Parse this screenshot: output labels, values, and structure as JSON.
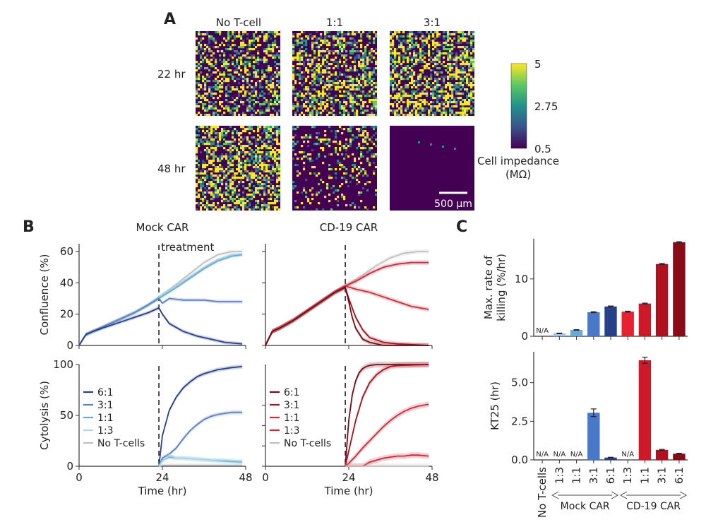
{
  "panels": {
    "a": "A",
    "b": "B",
    "c": "C"
  },
  "panel_a": {
    "col_labels": [
      "No T-cell",
      "1:1",
      "3:1"
    ],
    "row_labels": [
      "22 hr",
      "48 hr"
    ],
    "colorbar": {
      "ticks": [
        "5",
        "2.75",
        "0.5"
      ],
      "label_line1": "Cell impedance",
      "label_line2": "(MΩ)",
      "colors": [
        "#440154",
        "#3b528b",
        "#21918c",
        "#5ec962",
        "#fde725"
      ]
    },
    "scalebar": "500 µm"
  },
  "chart_data": [
    {
      "type": "line",
      "title": "Mock CAR",
      "ylabel": "Confluence (%)",
      "xlim": [
        0,
        48
      ],
      "ylim": [
        0,
        65
      ],
      "yticks": [
        0,
        20,
        40,
        60
      ],
      "treatment_time": 23,
      "annotation": "treatment",
      "series": [
        {
          "color": "#c0c0c0",
          "x": [
            0,
            2,
            4,
            8,
            12,
            16,
            20,
            23,
            28,
            32,
            36,
            40,
            44,
            47
          ],
          "y": [
            0,
            7,
            9,
            13,
            17,
            21,
            26,
            31,
            39,
            46,
            53,
            58,
            60,
            60
          ]
        },
        {
          "color": "#a8d8ea",
          "x": [
            0,
            2,
            4,
            8,
            12,
            16,
            20,
            23,
            28,
            32,
            36,
            40,
            44,
            47
          ],
          "y": [
            0,
            7,
            9,
            13,
            17,
            21,
            26,
            31,
            38,
            44,
            50,
            55,
            58,
            58
          ]
        },
        {
          "color": "#6aa8d8",
          "x": [
            0,
            2,
            4,
            8,
            12,
            16,
            20,
            23,
            28,
            32,
            36,
            40,
            44,
            47
          ],
          "y": [
            0,
            7,
            9,
            13,
            17,
            21,
            26,
            30,
            37,
            43,
            49,
            54,
            57,
            58
          ]
        },
        {
          "color": "#5a80c8",
          "x": [
            0,
            2,
            4,
            8,
            12,
            16,
            20,
            23,
            24,
            26,
            30,
            36,
            40,
            44,
            47
          ],
          "y": [
            0,
            7,
            9,
            13,
            17,
            21,
            26,
            30,
            27,
            30,
            29,
            29,
            28,
            28,
            28
          ]
        },
        {
          "color": "#27408b",
          "x": [
            0,
            2,
            4,
            8,
            12,
            16,
            20,
            23,
            24,
            26,
            30,
            34,
            38,
            42,
            47
          ],
          "y": [
            0,
            7,
            9,
            12,
            15,
            18,
            21,
            24,
            20,
            14,
            9,
            6,
            4,
            2,
            1
          ]
        }
      ]
    },
    {
      "type": "line",
      "title": "CD-19 CAR",
      "xlim": [
        0,
        48
      ],
      "ylim": [
        0,
        65
      ],
      "treatment_time": 23,
      "series": [
        {
          "color": "#c0c0c0",
          "x": [
            0,
            2,
            4,
            8,
            12,
            16,
            20,
            23,
            28,
            32,
            36,
            40,
            44,
            47
          ],
          "y": [
            0,
            9,
            11,
            16,
            22,
            28,
            34,
            38,
            45,
            51,
            56,
            59,
            60,
            60
          ]
        },
        {
          "color": "#e02030",
          "x": [
            0,
            2,
            4,
            8,
            12,
            16,
            20,
            23,
            26,
            30,
            34,
            38,
            42,
            47
          ],
          "y": [
            0,
            9,
            11,
            16,
            22,
            28,
            34,
            38,
            41,
            46,
            50,
            52,
            53,
            53
          ]
        },
        {
          "color": "#d42a35",
          "x": [
            0,
            2,
            4,
            8,
            12,
            16,
            20,
            23,
            26,
            30,
            34,
            38,
            42,
            47
          ],
          "y": [
            0,
            9,
            11,
            16,
            22,
            28,
            34,
            38,
            36,
            34,
            31,
            28,
            25,
            23
          ]
        },
        {
          "color": "#b01020",
          "x": [
            0,
            2,
            4,
            8,
            12,
            16,
            20,
            23,
            24,
            26,
            28,
            30,
            34,
            38,
            47
          ],
          "y": [
            0,
            9,
            11,
            16,
            22,
            28,
            34,
            37,
            30,
            18,
            10,
            5,
            2,
            1,
            0
          ]
        },
        {
          "color": "#7a0a12",
          "x": [
            0,
            2,
            4,
            8,
            12,
            16,
            20,
            23,
            24,
            25,
            26,
            28,
            30,
            34,
            47
          ],
          "y": [
            0,
            9,
            11,
            16,
            22,
            28,
            34,
            37,
            28,
            18,
            11,
            4,
            2,
            0,
            0
          ]
        }
      ]
    },
    {
      "type": "line",
      "xlabel": "Time (hr)",
      "ylabel": "Cytolysis (%)",
      "xlim": [
        0,
        48
      ],
      "ylim": [
        0,
        100
      ],
      "xticks": [
        0,
        24,
        48
      ],
      "yticks": [
        0,
        50,
        100
      ],
      "treatment_time": 23,
      "legend_position": "left",
      "series": [
        {
          "name": "6:1",
          "color": "#27408b",
          "x": [
            23,
            24,
            26,
            28,
            30,
            32,
            34,
            36,
            38,
            40,
            42,
            44,
            47
          ],
          "y": [
            0,
            30,
            55,
            68,
            77,
            83,
            88,
            91,
            93,
            95,
            96,
            97,
            98
          ]
        },
        {
          "name": "3:1",
          "color": "#5a80c8",
          "x": [
            23,
            24,
            26,
            28,
            30,
            32,
            34,
            36,
            38,
            40,
            42,
            44,
            47
          ],
          "y": [
            0,
            8,
            12,
            18,
            27,
            35,
            41,
            46,
            49,
            51,
            52,
            53,
            53
          ]
        },
        {
          "name": "1:1",
          "color": "#6aa8d8",
          "x": [
            23,
            24,
            26,
            28,
            30,
            34,
            38,
            42,
            47
          ],
          "y": [
            0,
            6,
            9,
            8,
            8,
            7,
            6,
            5,
            4
          ]
        },
        {
          "name": "1:3",
          "color": "#a8d8ea",
          "x": [
            23,
            24,
            26,
            28,
            30,
            34,
            38,
            42,
            47
          ],
          "y": [
            0,
            5,
            11,
            8,
            8,
            7,
            6,
            6,
            5
          ]
        },
        {
          "name": "No T-cells",
          "color": "#c0c0c0",
          "x": [
            23,
            24,
            28,
            32,
            36,
            40,
            44,
            47
          ],
          "y": [
            0,
            1,
            1,
            1,
            1,
            1,
            1,
            1
          ]
        }
      ]
    },
    {
      "type": "line",
      "xlabel": "Time (hr)",
      "xlim": [
        0,
        48
      ],
      "ylim": [
        0,
        100
      ],
      "xticks": [
        0,
        24,
        48
      ],
      "treatment_time": 23,
      "legend_position": "left",
      "series": [
        {
          "name": "6:1",
          "color": "#7a0a12",
          "x": [
            23,
            24,
            25,
            26,
            27,
            28,
            29,
            30,
            32,
            34,
            47
          ],
          "y": [
            0,
            45,
            70,
            84,
            92,
            96,
            98,
            99,
            100,
            100,
            100
          ]
        },
        {
          "name": "3:1",
          "color": "#b01020",
          "x": [
            23,
            24,
            26,
            28,
            30,
            32,
            34,
            36,
            38,
            47
          ],
          "y": [
            0,
            15,
            45,
            68,
            82,
            90,
            95,
            98,
            99,
            100
          ]
        },
        {
          "name": "1:1",
          "color": "#d42a35",
          "x": [
            23,
            24,
            26,
            28,
            30,
            32,
            34,
            36,
            38,
            40,
            42,
            44,
            47
          ],
          "y": [
            0,
            3,
            10,
            18,
            25,
            32,
            39,
            45,
            50,
            54,
            57,
            59,
            61
          ]
        },
        {
          "name": "1:3",
          "color": "#e02030",
          "x": [
            23,
            28,
            29,
            30,
            32,
            34,
            36,
            38,
            40,
            42,
            44,
            47
          ],
          "y": [
            0,
            0,
            2,
            4,
            6,
            8,
            9,
            10,
            10,
            11,
            11,
            10
          ]
        },
        {
          "name": "No T-cells",
          "color": "#c0c0c0",
          "x": [
            23,
            24,
            28,
            32,
            36,
            40,
            44,
            47
          ],
          "y": [
            0,
            0,
            0,
            0,
            0,
            0,
            0,
            0
          ]
        }
      ]
    },
    {
      "type": "bar",
      "ylabel": "Max. rate of killing (%/hr)",
      "ylim": [
        0,
        17
      ],
      "yticks": [
        0,
        10
      ],
      "categories": [
        "No T-cells",
        "1:3",
        "1:1",
        "3:1",
        "6:1",
        "1:3",
        "1:1",
        "3:1",
        "6:1"
      ],
      "values": [
        null,
        0.5,
        1.1,
        4.2,
        5.2,
        4.3,
        5.7,
        12.6,
        16.4
      ],
      "errors": [
        0,
        0.05,
        0.05,
        0.08,
        0.08,
        0.08,
        0.08,
        0.1,
        0.1
      ],
      "colors": [
        "#ffffff",
        "#9cc4e8",
        "#6aa8d8",
        "#4a78c8",
        "#27408b",
        "#e82030",
        "#d01828",
        "#b01020",
        "#8a0a18"
      ],
      "na_label": "N/A"
    },
    {
      "type": "bar",
      "ylabel": "KT25 (hr)",
      "ylim": [
        0,
        7
      ],
      "yticks": [
        0.0,
        2.5,
        5.0
      ],
      "categories": [
        "No T-cells",
        "1:3",
        "1:1",
        "3:1",
        "6:1",
        "1:3",
        "1:1",
        "3:1",
        "6:1"
      ],
      "values": [
        null,
        null,
        null,
        3.05,
        0.15,
        null,
        6.45,
        0.65,
        0.4
      ],
      "errors": [
        0,
        0,
        0,
        0.25,
        0.02,
        0,
        0.2,
        0.03,
        0.03
      ],
      "colors": [
        "#ffffff",
        "#9cc4e8",
        "#6aa8d8",
        "#4a78c8",
        "#27408b",
        "#e82030",
        "#d01828",
        "#b01020",
        "#8a0a18"
      ],
      "na_label": "N/A",
      "groups": [
        {
          "label": "Mock CAR"
        },
        {
          "label": "CD-19 CAR"
        }
      ]
    }
  ]
}
